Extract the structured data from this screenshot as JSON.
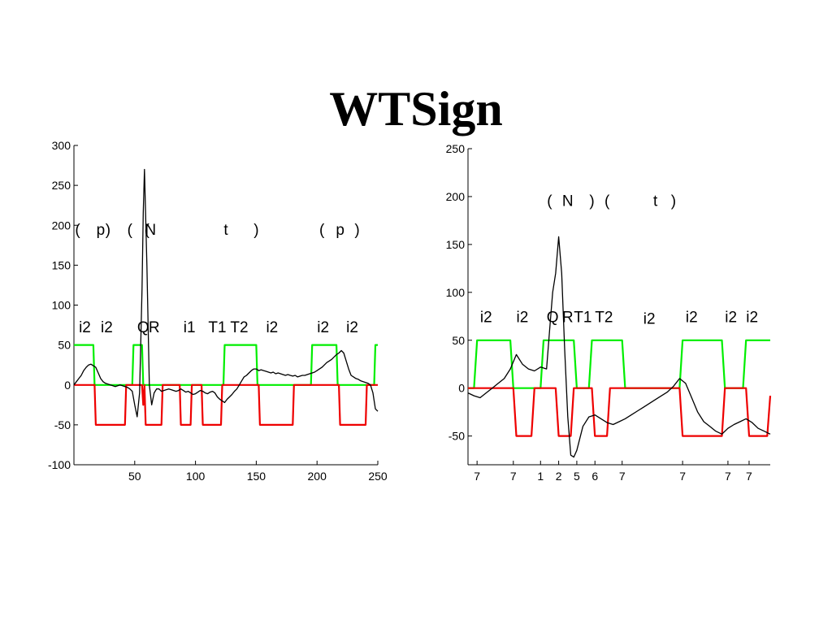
{
  "slide": {
    "title": "WTSign"
  },
  "chart_data": [
    {
      "type": "line",
      "title": "",
      "xlabel": "",
      "ylabel": "",
      "xlim": [
        0,
        250
      ],
      "ylim": [
        -100,
        300
      ],
      "xticks": [
        50,
        100,
        150,
        200,
        250
      ],
      "yticks": [
        -100,
        -50,
        0,
        50,
        100,
        150,
        200,
        250,
        300
      ],
      "grid": false,
      "legend": "none",
      "series": [
        {
          "color": "#000000",
          "x": [
            0,
            2,
            4,
            6,
            8,
            10,
            12,
            14,
            16,
            18,
            20,
            22,
            24,
            26,
            28,
            30,
            32,
            34,
            36,
            38,
            40,
            42,
            44,
            46,
            48,
            50,
            52,
            54,
            56,
            57,
            58,
            60,
            62,
            64,
            66,
            68,
            70,
            72,
            74,
            76,
            78,
            80,
            82,
            84,
            86,
            88,
            90,
            92,
            94,
            96,
            98,
            100,
            102,
            104,
            106,
            108,
            110,
            112,
            114,
            116,
            118,
            120,
            122,
            124,
            126,
            128,
            130,
            132,
            134,
            136,
            138,
            140,
            142,
            144,
            146,
            148,
            150,
            152,
            154,
            156,
            158,
            160,
            162,
            164,
            166,
            168,
            170,
            172,
            174,
            176,
            178,
            180,
            182,
            184,
            186,
            188,
            190,
            192,
            194,
            196,
            198,
            200,
            202,
            204,
            206,
            208,
            210,
            212,
            214,
            216,
            218,
            220,
            222,
            224,
            226,
            228,
            230,
            232,
            234,
            236,
            238,
            240,
            242,
            244,
            246,
            248,
            250
          ],
          "values": [
            0,
            4,
            8,
            12,
            18,
            22,
            25,
            26,
            24,
            22,
            15,
            8,
            4,
            2,
            1,
            0,
            -1,
            -2,
            -1,
            0,
            -1,
            -2,
            -3,
            -5,
            -8,
            -25,
            -40,
            -10,
            120,
            215,
            270,
            150,
            0,
            -25,
            -10,
            -5,
            -5,
            -8,
            -7,
            -6,
            -5,
            -6,
            -7,
            -8,
            -7,
            -5,
            -7,
            -9,
            -8,
            -10,
            -12,
            -11,
            -9,
            -7,
            -8,
            -10,
            -11,
            -9,
            -8,
            -10,
            -15,
            -18,
            -20,
            -22,
            -18,
            -15,
            -12,
            -8,
            -5,
            0,
            5,
            10,
            12,
            15,
            18,
            20,
            20,
            18,
            19,
            18,
            17,
            16,
            15,
            16,
            14,
            15,
            14,
            13,
            12,
            13,
            12,
            11,
            12,
            10,
            11,
            12,
            12,
            13,
            14,
            15,
            16,
            18,
            20,
            22,
            25,
            28,
            30,
            32,
            35,
            38,
            40,
            43,
            40,
            30,
            20,
            12,
            10,
            8,
            7,
            5,
            4,
            3,
            2,
            0,
            -10,
            -30,
            -33
          ]
        },
        {
          "color": "#00ee00",
          "x": [
            0,
            16,
            17,
            48,
            49,
            56,
            57,
            123,
            124,
            150,
            151,
            195,
            196,
            216,
            217,
            247,
            248,
            250
          ],
          "values": [
            50,
            50,
            0,
            0,
            50,
            50,
            0,
            0,
            50,
            50,
            0,
            0,
            50,
            50,
            0,
            0,
            50,
            50
          ]
        },
        {
          "color": "#ee0000",
          "x": [
            0,
            17,
            18,
            42,
            43,
            56,
            57,
            58,
            59,
            72,
            73,
            87,
            88,
            96,
            97,
            105,
            106,
            121,
            122,
            152,
            153,
            180,
            181,
            218,
            219,
            240,
            241,
            250
          ],
          "values": [
            0,
            0,
            -50,
            -50,
            0,
            0,
            -25,
            0,
            -50,
            -50,
            0,
            0,
            -50,
            -50,
            0,
            0,
            -50,
            -50,
            0,
            0,
            -50,
            -50,
            0,
            0,
            -50,
            -50,
            0,
            0
          ]
        }
      ],
      "annotations": [
        {
          "text": "(",
          "x": 3,
          "y": 195
        },
        {
          "text": "p",
          "x": 22,
          "y": 195
        },
        {
          "text": ")",
          "x": 28,
          "y": 195
        },
        {
          "text": "(",
          "x": 46,
          "y": 195
        },
        {
          "text": "(",
          "x": 60,
          "y": 195
        },
        {
          "text": "N",
          "x": 63,
          "y": 195
        },
        {
          "text": "t",
          "x": 125,
          "y": 195
        },
        {
          "text": ")",
          "x": 150,
          "y": 195
        },
        {
          "text": "(",
          "x": 204,
          "y": 195
        },
        {
          "text": "p",
          "x": 219,
          "y": 195
        },
        {
          "text": ")",
          "x": 233,
          "y": 195
        },
        {
          "text": "i2",
          "x": 9,
          "y": 73
        },
        {
          "text": "i2",
          "x": 27,
          "y": 73
        },
        {
          "text": "Q",
          "x": 57,
          "y": 73
        },
        {
          "text": "R",
          "x": 66,
          "y": 73
        },
        {
          "text": "i1",
          "x": 95,
          "y": 73
        },
        {
          "text": "T1",
          "x": 118,
          "y": 73
        },
        {
          "text": "T2",
          "x": 136,
          "y": 73
        },
        {
          "text": "i2",
          "x": 163,
          "y": 73
        },
        {
          "text": "i2",
          "x": 205,
          "y": 73
        },
        {
          "text": "i2",
          "x": 229,
          "y": 73
        }
      ]
    },
    {
      "type": "line",
      "title": "",
      "xlabel": "",
      "ylabel": "",
      "xlim": [
        0,
        100
      ],
      "ylim": [
        -80,
        250
      ],
      "xticks": [
        3,
        15,
        24,
        30,
        36,
        42,
        51,
        71,
        86,
        93
      ],
      "xticklabels": [
        "7",
        "7",
        "1",
        "2",
        "5",
        "6",
        "7",
        "7",
        "7",
        "7"
      ],
      "yticks": [
        -50,
        0,
        50,
        100,
        150,
        200,
        250
      ],
      "grid": false,
      "legend": "none",
      "series": [
        {
          "color": "#000000",
          "x": [
            0,
            2,
            4,
            6,
            8,
            10,
            12,
            14,
            16,
            18,
            20,
            22,
            24,
            26,
            27,
            28,
            29,
            30,
            31,
            32,
            33,
            34,
            35,
            36,
            38,
            40,
            42,
            44,
            46,
            48,
            50,
            52,
            54,
            56,
            58,
            60,
            62,
            64,
            66,
            68,
            70,
            72,
            74,
            76,
            78,
            80,
            82,
            84,
            86,
            88,
            90,
            92,
            94,
            96,
            98,
            100
          ],
          "values": [
            -5,
            -8,
            -10,
            -5,
            0,
            5,
            10,
            20,
            35,
            25,
            20,
            18,
            22,
            20,
            60,
            100,
            120,
            158,
            120,
            40,
            -30,
            -70,
            -72,
            -65,
            -40,
            -30,
            -28,
            -32,
            -36,
            -38,
            -35,
            -32,
            -28,
            -24,
            -20,
            -16,
            -12,
            -8,
            -4,
            2,
            10,
            5,
            -10,
            -25,
            -35,
            -40,
            -45,
            -48,
            -42,
            -38,
            -35,
            -32,
            -36,
            -42,
            -45,
            -48
          ]
        },
        {
          "color": "#00ee00",
          "x": [
            0,
            2,
            3,
            14,
            15,
            24,
            25,
            35,
            36,
            40,
            41,
            51,
            52,
            70,
            71,
            84,
            85,
            91,
            92,
            100
          ],
          "values": [
            0,
            0,
            50,
            50,
            0,
            0,
            50,
            50,
            0,
            0,
            50,
            50,
            0,
            0,
            50,
            50,
            0,
            0,
            50,
            50
          ]
        },
        {
          "color": "#ee0000",
          "x": [
            0,
            15,
            16,
            21,
            22,
            29,
            30,
            34,
            35,
            41,
            42,
            46,
            47,
            70,
            71,
            84,
            85,
            92,
            93,
            99,
            100
          ],
          "values": [
            0,
            0,
            -50,
            -50,
            0,
            0,
            -50,
            -50,
            0,
            0,
            -50,
            -50,
            0,
            0,
            -50,
            -50,
            0,
            0,
            -50,
            -50,
            -8
          ]
        }
      ],
      "annotations": [
        {
          "text": "(",
          "x": 27,
          "y": 196
        },
        {
          "text": "N",
          "x": 33,
          "y": 196
        },
        {
          "text": ")",
          "x": 41,
          "y": 196
        },
        {
          "text": "(",
          "x": 46,
          "y": 196
        },
        {
          "text": "t",
          "x": 62,
          "y": 196
        },
        {
          "text": ")",
          "x": 68,
          "y": 196
        },
        {
          "text": "i2",
          "x": 6,
          "y": 75
        },
        {
          "text": "i2",
          "x": 18,
          "y": 75
        },
        {
          "text": "Q",
          "x": 28,
          "y": 75
        },
        {
          "text": "R",
          "x": 33,
          "y": 75
        },
        {
          "text": "T1",
          "x": 38,
          "y": 75
        },
        {
          "text": "T2",
          "x": 45,
          "y": 75
        },
        {
          "text": "i2",
          "x": 60,
          "y": 73
        },
        {
          "text": "i2",
          "x": 74,
          "y": 75
        },
        {
          "text": "i2",
          "x": 87,
          "y": 75
        },
        {
          "text": "i2",
          "x": 94,
          "y": 75
        }
      ]
    }
  ]
}
